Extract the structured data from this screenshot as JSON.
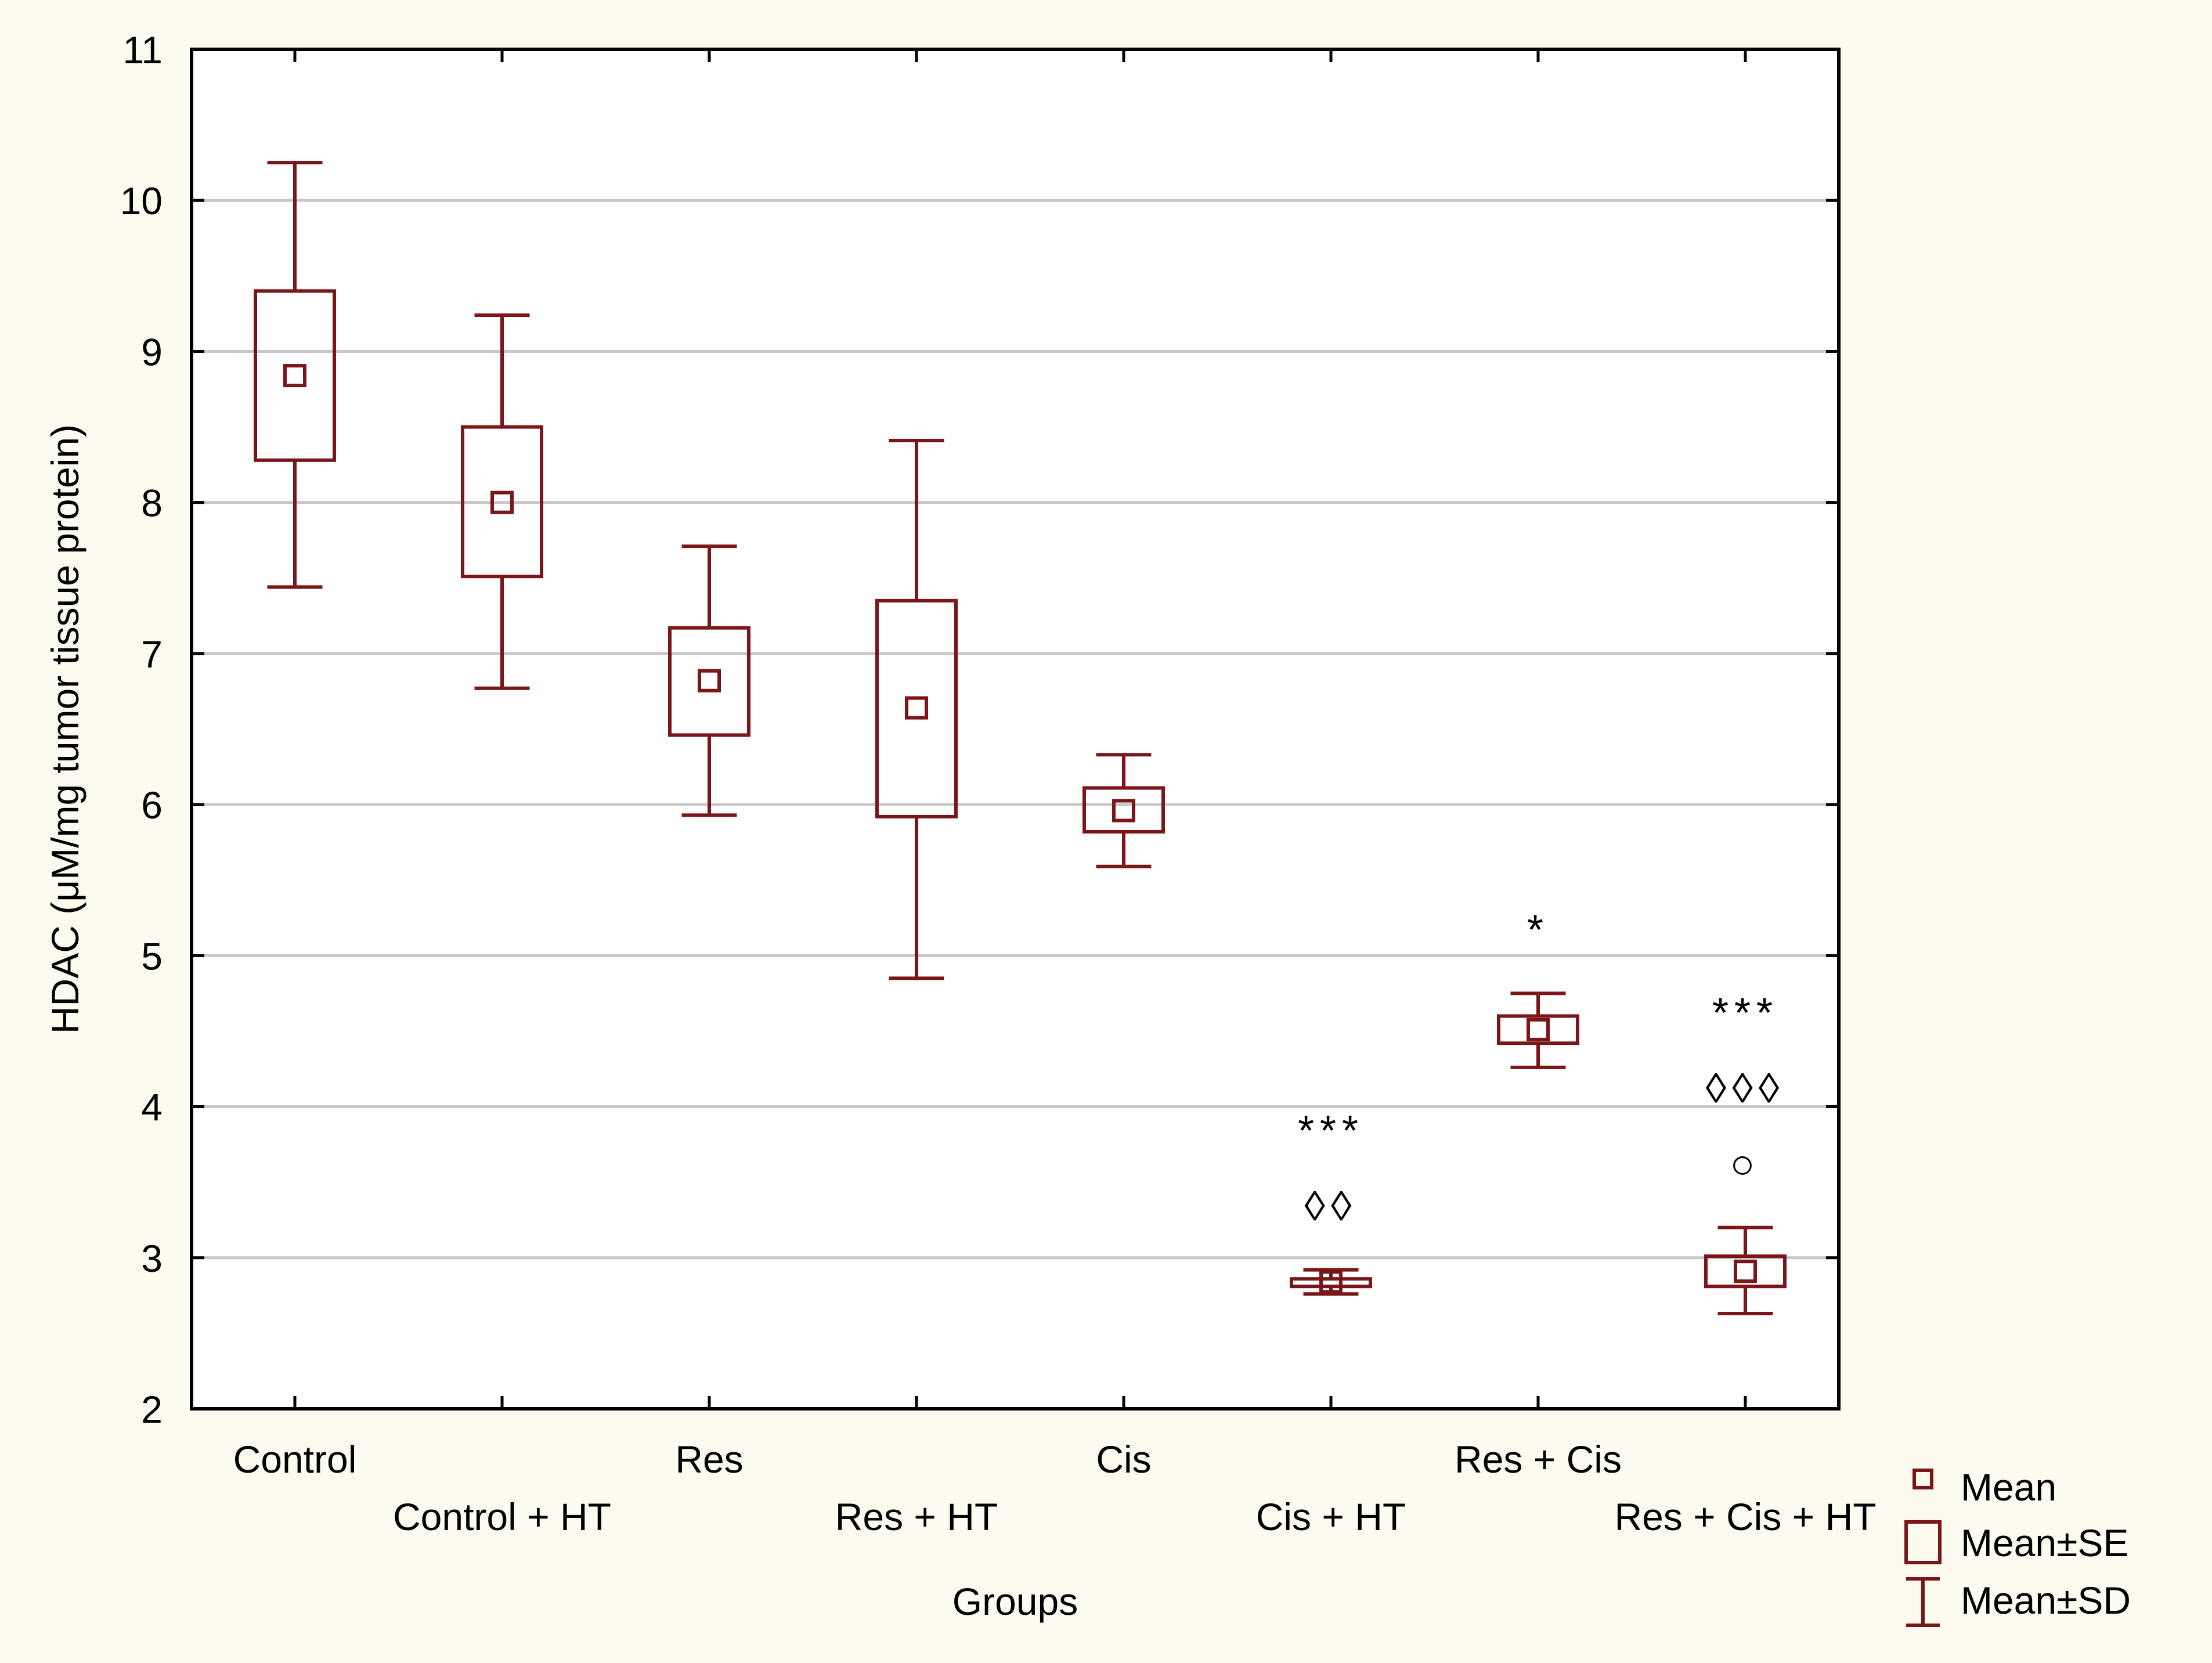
{
  "chart_data": {
    "type": "box",
    "xlabel": "Groups",
    "ylabel": "HDAC (μM/mg tumor tissue protein)",
    "ylim": [
      2,
      11
    ],
    "yticks": [
      2,
      3,
      4,
      5,
      6,
      7,
      8,
      9,
      10,
      11
    ],
    "grid": "horizontal",
    "categories": [
      "Control",
      "Control + HT",
      "Res",
      "Res + HT",
      "Cis",
      "Cis + HT",
      "Res + Cis",
      "Res + Cis + HT"
    ],
    "series": [
      {
        "name": "Control",
        "mean": 8.84,
        "se_low": 8.28,
        "se_high": 9.4,
        "sd_low": 7.44,
        "sd_high": 10.25,
        "annotations": []
      },
      {
        "name": "Control + HT",
        "mean": 8.0,
        "se_low": 7.51,
        "se_high": 8.5,
        "sd_low": 6.77,
        "sd_high": 9.24,
        "annotations": []
      },
      {
        "name": "Res",
        "mean": 6.82,
        "se_low": 6.46,
        "se_high": 7.17,
        "sd_low": 5.93,
        "sd_high": 7.71,
        "annotations": []
      },
      {
        "name": "Res + HT",
        "mean": 6.64,
        "se_low": 5.92,
        "se_high": 7.35,
        "sd_low": 4.85,
        "sd_high": 8.41,
        "annotations": []
      },
      {
        "name": "Cis",
        "mean": 5.96,
        "se_low": 5.82,
        "se_high": 6.11,
        "sd_low": 5.59,
        "sd_high": 6.33,
        "annotations": []
      },
      {
        "name": "Cis + HT",
        "mean": 2.84,
        "se_low": 2.81,
        "se_high": 2.86,
        "sd_low": 2.76,
        "sd_high": 2.92,
        "annotations": [
          "***",
          "◊◊"
        ]
      },
      {
        "name": "Res + Cis",
        "mean": 4.51,
        "se_low": 4.42,
        "se_high": 4.6,
        "sd_low": 4.26,
        "sd_high": 4.75,
        "annotations": [
          "*"
        ]
      },
      {
        "name": "Res + Cis + HT",
        "mean": 2.91,
        "se_low": 2.81,
        "se_high": 3.01,
        "sd_low": 2.63,
        "sd_high": 3.2,
        "annotations": [
          "***",
          "◊◊◊",
          "○"
        ]
      }
    ],
    "legend": {
      "position": "bottom-right",
      "entries": [
        "Mean",
        "Mean±SE",
        "Mean±SD"
      ]
    },
    "colors": {
      "series": "#7b1618",
      "background": "#fdfaf0",
      "plot_background": "#ffffff",
      "grid": "#c8c8c8",
      "axis": "#000000",
      "text": "#000000"
    }
  }
}
